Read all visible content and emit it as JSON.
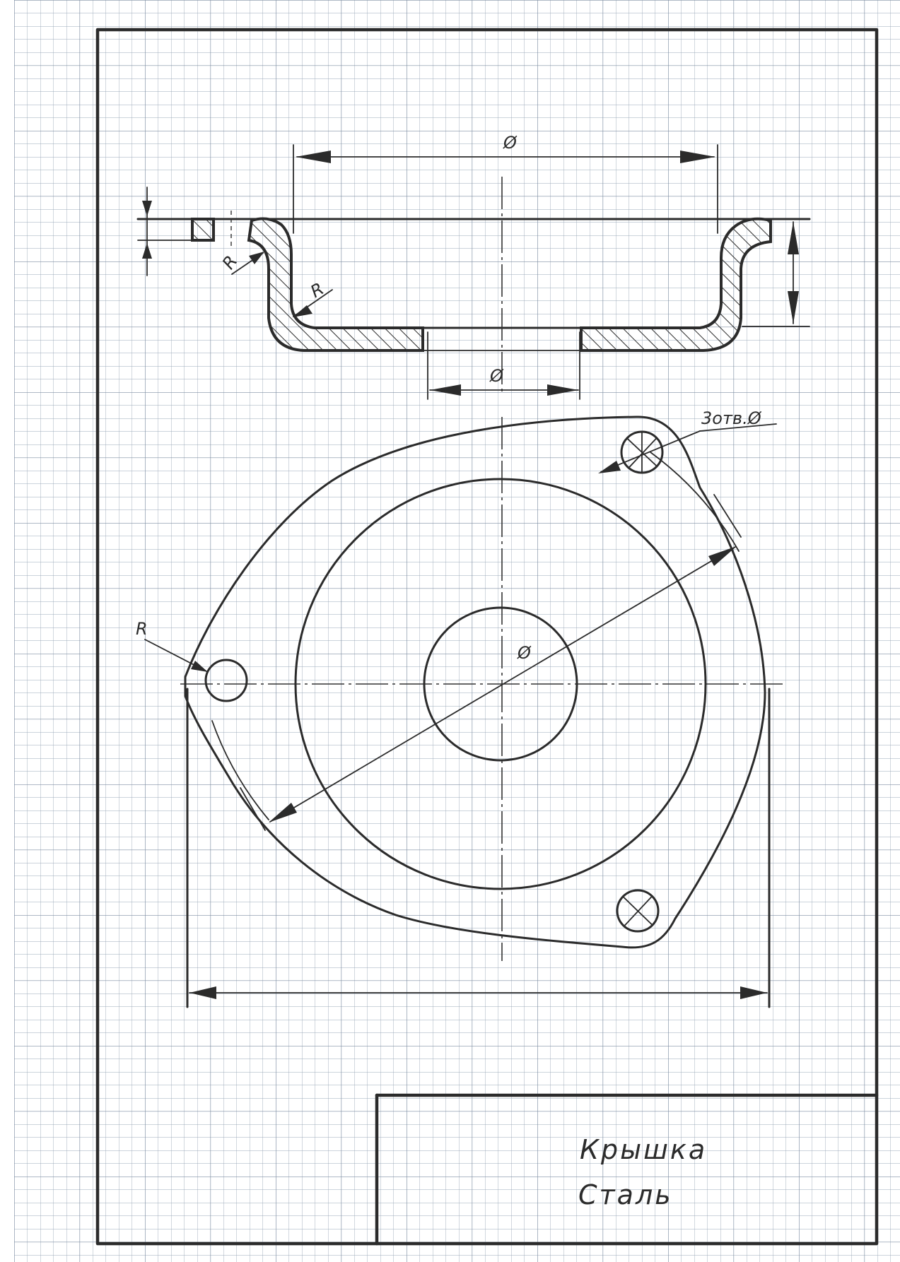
{
  "labels": {
    "dia_top": "Ø",
    "dia_bottom": "Ø",
    "radius_flange": "R",
    "radius_inner": "R",
    "dia_main": "Ø",
    "radius_lug": "R",
    "holes": "3отв.Ø"
  },
  "title_block": {
    "name": "Крышка",
    "material": "Сталь"
  },
  "colors": {
    "grid": "#9aa8b8",
    "ink": "#2b2b2b",
    "paper": "#ffffff"
  }
}
